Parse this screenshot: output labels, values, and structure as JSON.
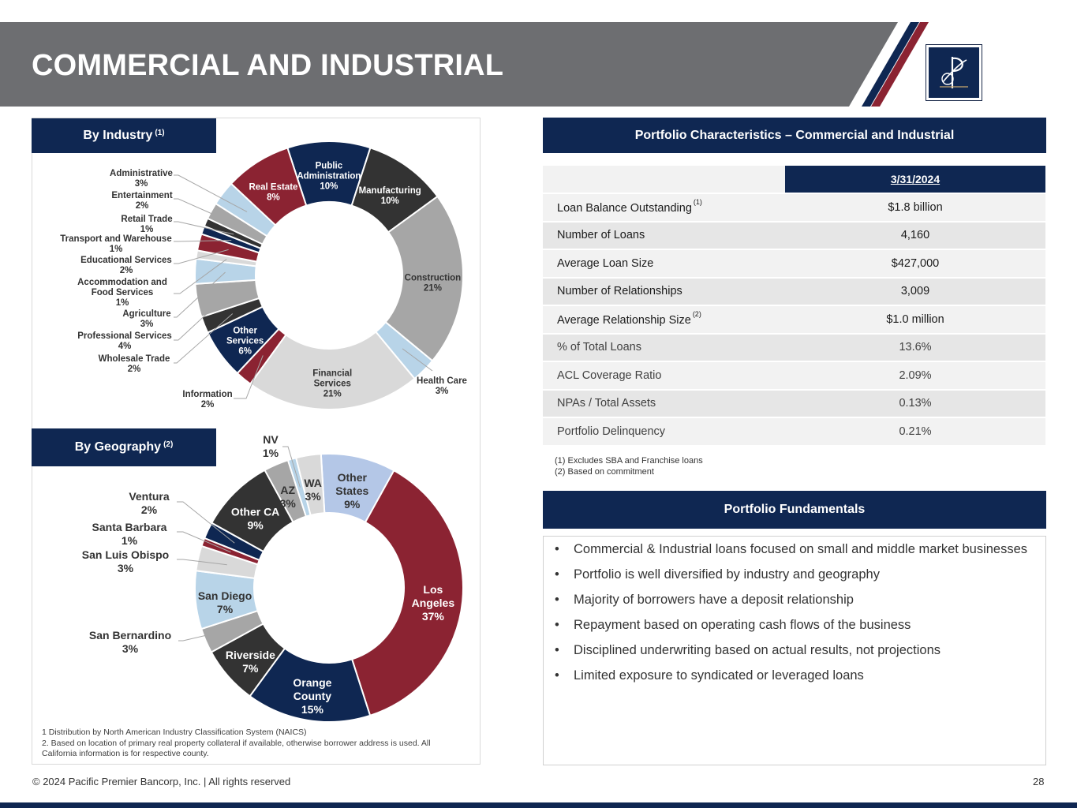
{
  "header": {
    "title": "COMMERCIAL AND INDUSTRIAL",
    "colors": {
      "band": "#6d6e71",
      "navy": "#0f2752",
      "red": "#8b2332"
    }
  },
  "left": {
    "industry_tag": "By Industry",
    "industry_tag_sup": "(1)",
    "geography_tag": "By Geography",
    "geography_tag_sup": "(2)",
    "footnotes": [
      "1 Distribution by North American Industry Classification System (NAICS)",
      "2. Based on location of primary real property collateral if available, otherwise borrower address is used. All California information is for respective county."
    ]
  },
  "chart_data": [
    {
      "type": "pie",
      "style": "donut",
      "slices": [
        {
          "label": "Public Administration",
          "value": 10,
          "display": "10%",
          "color": "#0f2752"
        },
        {
          "label": "Manufacturing",
          "value": 10,
          "display": "10%",
          "color": "#333333"
        },
        {
          "label": "Construction",
          "value": 21,
          "display": "21%",
          "color": "#a6a6a6"
        },
        {
          "label": "Health Care",
          "value": 3,
          "display": "3%",
          "color": "#b8d4e8"
        },
        {
          "label": "Financial Services",
          "value": 21,
          "display": "21%",
          "color": "#d9d9d9"
        },
        {
          "label": "Information",
          "value": 2,
          "display": "2%",
          "color": "#8b2332"
        },
        {
          "label": "Other Services",
          "value": 6,
          "display": "6%",
          "color": "#0f2752"
        },
        {
          "label": "Wholesale Trade",
          "value": 2,
          "display": "2%",
          "color": "#333333"
        },
        {
          "label": "Professional Services",
          "value": 4,
          "display": "4%",
          "color": "#a6a6a6"
        },
        {
          "label": "Agriculture",
          "value": 3,
          "display": "3%",
          "color": "#b8d4e8"
        },
        {
          "label": "Accommodation and Food Services",
          "value": 1,
          "display": "1%",
          "color": "#d9d9d9"
        },
        {
          "label": "Educational Services",
          "value": 2,
          "display": "2%",
          "color": "#8b2332"
        },
        {
          "label": "Transport and Warehouse",
          "value": 1,
          "display": "1%",
          "color": "#0f2752"
        },
        {
          "label": "Retail Trade",
          "value": 1,
          "display": "1%",
          "color": "#333333"
        },
        {
          "label": "Entertainment",
          "value": 2,
          "display": "2%",
          "color": "#a6a6a6"
        },
        {
          "label": "Administrative",
          "value": 3,
          "display": "3%",
          "color": "#b8d4e8"
        },
        {
          "label": "Real Estate",
          "value": 8,
          "display": "8%",
          "color": "#8b2332"
        }
      ]
    },
    {
      "type": "pie",
      "style": "donut",
      "slices": [
        {
          "label": "Other States",
          "value": 9,
          "display": "9%",
          "color": "#b4c7e7"
        },
        {
          "label": "Los Angeles",
          "value": 37,
          "display": "37%",
          "color": "#8b2332"
        },
        {
          "label": "Orange County",
          "value": 15,
          "display": "15%",
          "color": "#0f2752"
        },
        {
          "label": "Riverside",
          "value": 7,
          "display": "7%",
          "color": "#333333"
        },
        {
          "label": "San Bernardino",
          "value": 3,
          "display": "3%",
          "color": "#a6a6a6"
        },
        {
          "label": "San Diego",
          "value": 7,
          "display": "7%",
          "color": "#b8d4e8"
        },
        {
          "label": "San Luis Obispo",
          "value": 3,
          "display": "3%",
          "color": "#d9d9d9"
        },
        {
          "label": "Santa Barbara",
          "value": 1,
          "display": "1%",
          "color": "#8b2332"
        },
        {
          "label": "Ventura",
          "value": 2,
          "display": "2%",
          "color": "#0f2752"
        },
        {
          "label": "Other CA",
          "value": 9,
          "display": "9%",
          "color": "#333333"
        },
        {
          "label": "AZ",
          "value": 3,
          "display": "3%",
          "color": "#a6a6a6"
        },
        {
          "label": "NV",
          "value": 1,
          "display": "1%",
          "color": "#b8d4e8"
        },
        {
          "label": "WA",
          "value": 3,
          "display": "3%",
          "color": "#d9d9d9"
        }
      ]
    }
  ],
  "portfolio": {
    "title": "Portfolio Characteristics – Commercial and Industrial",
    "date_header": "3/31/2024",
    "rows": [
      {
        "label": "Loan Balance Outstanding",
        "sup": "(1)",
        "value": "$1.8 billion"
      },
      {
        "label": "Number of Loans",
        "sup": "",
        "value": "4,160"
      },
      {
        "label": "Average Loan Size",
        "sup": "",
        "value": "$427,000"
      },
      {
        "label": "Number of Relationships",
        "sup": "",
        "value": "3,009"
      },
      {
        "label": "Average Relationship Size",
        "sup": "(2)",
        "value": "$1.0 million"
      },
      {
        "label": "% of Total Loans",
        "sup": "",
        "value": "13.6%"
      },
      {
        "label": "ACL Coverage Ratio",
        "sup": "",
        "value": "2.09%"
      },
      {
        "label": "NPAs / Total Assets",
        "sup": "",
        "value": "0.13%"
      },
      {
        "label": "Portfolio Delinquency",
        "sup": "",
        "value": "0.21%"
      }
    ],
    "notes": [
      "(1) Excludes SBA and Franchise loans",
      "(2) Based on commitment"
    ]
  },
  "fundamentals": {
    "title": "Portfolio Fundamentals",
    "bullets": [
      "Commercial & Industrial loans focused on small and middle market businesses",
      "Portfolio is well diversified by industry and geography",
      "Majority of borrowers have a deposit relationship",
      "Repayment based on operating cash flows of the business",
      "Disciplined underwriting based on actual results, not projections",
      "Limited exposure to syndicated or leveraged loans"
    ]
  },
  "footer": {
    "copyright": "© 2024 Pacific Premier Bancorp, Inc. | All rights reserved",
    "page_number": "28"
  }
}
